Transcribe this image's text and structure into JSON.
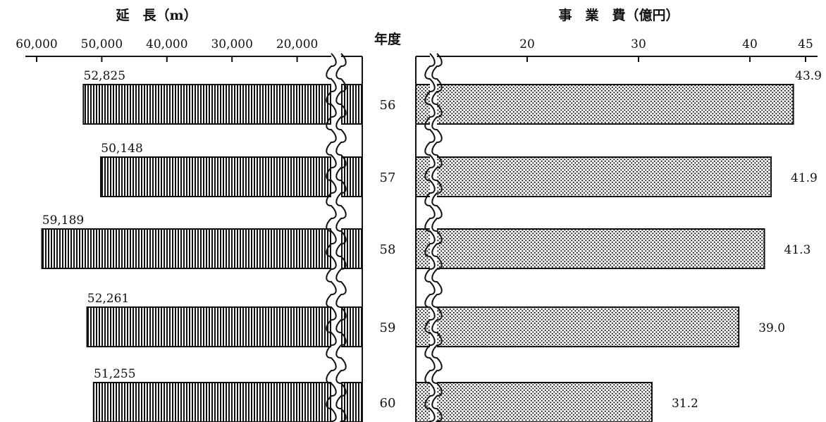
{
  "chart_data": [
    {
      "type": "bar",
      "orientation": "horizontal",
      "direction": "right-to-left",
      "title": "延　長（m）",
      "categories": [
        "56",
        "57",
        "58",
        "59",
        "60"
      ],
      "values": [
        52825,
        50148,
        59189,
        52261,
        51255
      ],
      "value_labels": [
        "52,825",
        "50,148",
        "59,189",
        "52,261",
        "51,255"
      ],
      "xticks": [
        "60,000",
        "50,000",
        "40,000",
        "30,000",
        "20,000"
      ],
      "xtick_values": [
        60000,
        50000,
        40000,
        30000,
        20000
      ],
      "axis_break": true,
      "grid": false,
      "fill": "vertical-hatch"
    },
    {
      "type": "bar",
      "orientation": "horizontal",
      "title": "事　業　費（億円）",
      "categories": [
        "56",
        "57",
        "58",
        "59",
        "60"
      ],
      "values": [
        43.9,
        41.9,
        41.3,
        39.0,
        31.2
      ],
      "value_labels": [
        "43.9",
        "41.9",
        "41.3",
        "39.0",
        "31.2"
      ],
      "xticks": [
        "20",
        "30",
        "40",
        "45"
      ],
      "xtick_values": [
        20,
        30,
        40,
        45
      ],
      "axis_break": true,
      "grid": false,
      "fill": "dotted"
    }
  ],
  "category_axis_label": "年度",
  "colors": {
    "ink": "#111111",
    "background": "#ffffff"
  }
}
